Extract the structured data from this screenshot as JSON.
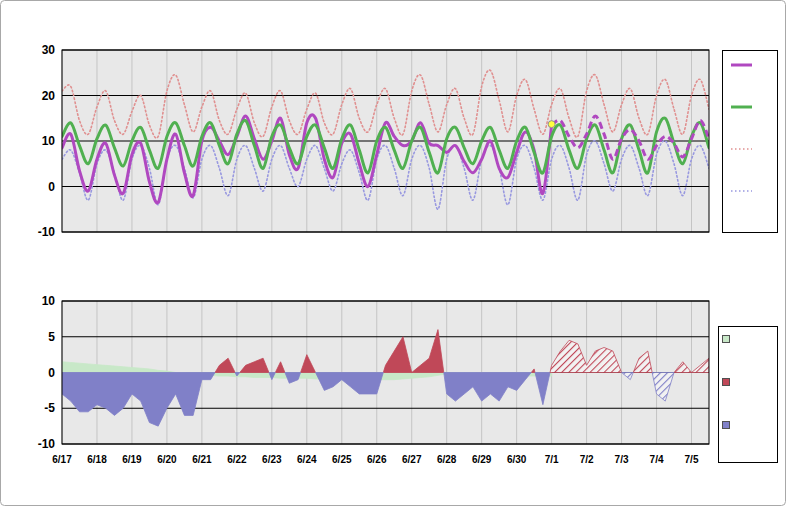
{
  "chart_data": [
    {
      "type": "line",
      "x": [
        0,
        0.25,
        0.5,
        0.75,
        1,
        1.25,
        1.5,
        1.75,
        2,
        2.25,
        2.5,
        2.75,
        3,
        3.25,
        3.5,
        3.75,
        4,
        4.25,
        4.5,
        4.75,
        5,
        5.25,
        5.5,
        5.75,
        6,
        6.25,
        6.5,
        6.75,
        7,
        7.25,
        7.5,
        7.75,
        8,
        8.25,
        8.5,
        8.75,
        9,
        9.25,
        9.5,
        9.75,
        10,
        10.25,
        10.5,
        10.75,
        11,
        11.25,
        11.5,
        11.75,
        12,
        12.25,
        12.5,
        12.75,
        13,
        13.25,
        13.5,
        13.75,
        14,
        14.25,
        14.5,
        14.75,
        15,
        15.25,
        15.5,
        15.75,
        16,
        16.25,
        16.5,
        16.75,
        17,
        17.25,
        17.5,
        17.75,
        18,
        18.25,
        18.5
      ],
      "xlim": [
        0,
        18.5
      ],
      "xticks": [
        0,
        1,
        2,
        3,
        4,
        5,
        6,
        7,
        8,
        9,
        10,
        11,
        12,
        13,
        14,
        15,
        16,
        17,
        18
      ],
      "ylim": [
        -10,
        30
      ],
      "yticks": [
        -10,
        0,
        10,
        20,
        30
      ],
      "grid": true,
      "tick_labels": "y",
      "series": [
        {
          "color": "#b048c0",
          "line_style": "solid",
          "values": [
            8.5,
            11.5,
            3.5,
            -1,
            6,
            9.5,
            2.5,
            -1.5,
            7,
            9.5,
            1,
            -3.5,
            6,
            11.5,
            3,
            -2,
            10,
            13,
            10,
            7,
            11,
            15.5,
            10.5,
            6,
            10,
            15,
            7,
            4,
            14,
            15,
            6,
            2,
            9.5,
            11.5,
            5,
            0,
            7,
            14,
            11,
            9,
            10,
            14,
            9.5,
            9,
            7.5,
            9,
            5.5,
            3,
            6,
            10,
            4,
            2,
            7.5,
            12,
            8,
            -1.5,
            13.5,
            null,
            null,
            null,
            null,
            null,
            null,
            null,
            null,
            null,
            null,
            null,
            null,
            null,
            null,
            null,
            null,
            null,
            null
          ]
        },
        {
          "color": "#50b050",
          "line_style": "solid",
          "values": [
            11,
            14,
            9,
            5,
            10.5,
            13.5,
            8.5,
            4.5,
            10,
            13,
            8,
            4,
            11,
            14,
            9,
            4.5,
            11,
            14,
            9,
            5,
            11.5,
            14.5,
            9,
            4,
            11,
            13.5,
            8.5,
            5,
            11,
            13.5,
            8.5,
            4,
            10.5,
            13.5,
            8,
            3,
            10,
            13,
            8,
            4,
            10,
            13,
            7.5,
            3,
            10.5,
            13,
            8.5,
            5,
            10,
            13,
            8,
            4,
            10,
            13,
            7.5,
            3,
            11,
            13.5,
            8,
            4,
            10.5,
            13.5,
            8,
            3,
            10.5,
            13.5,
            8,
            3,
            12,
            15,
            9.5,
            5,
            11,
            14,
            8.5
          ]
        },
        {
          "color": "#e09090",
          "line_style": "dotted",
          "values": [
            21,
            22,
            14.5,
            11.5,
            17.5,
            21,
            14.5,
            11.5,
            16.5,
            20,
            13.5,
            11,
            21,
            24.5,
            18,
            12,
            17.5,
            21,
            14.5,
            11.5,
            17,
            20.5,
            14,
            11,
            17.5,
            21,
            14.5,
            11.5,
            17,
            20.5,
            14,
            11.5,
            18,
            21.5,
            15,
            12,
            18,
            21.5,
            15,
            11.5,
            21,
            24.5,
            18,
            12,
            18,
            21.5,
            15,
            11.5,
            22,
            25.5,
            19,
            12,
            20,
            23.5,
            17,
            11.5,
            18,
            21.5,
            15,
            11,
            21,
            24.5,
            18,
            12,
            18,
            21.5,
            15,
            11.5,
            20,
            23.5,
            17,
            11.5,
            20,
            23.5,
            17
          ]
        },
        {
          "color": "#9898e0",
          "line_style": "dotted",
          "values": [
            6,
            8,
            3,
            -3,
            5,
            8,
            3,
            -3,
            6,
            9,
            4,
            -4,
            6,
            9,
            4,
            -2.5,
            6,
            9,
            4,
            -2,
            6,
            9,
            4,
            -1,
            6,
            9,
            4,
            0,
            6,
            9,
            4,
            -1,
            5,
            8,
            3,
            -3,
            6,
            9,
            4,
            -2,
            6,
            9,
            4,
            -5,
            6,
            9,
            4,
            -3,
            6,
            9,
            4,
            -4,
            6,
            9,
            4,
            -3,
            6,
            9,
            4,
            -3,
            7,
            10,
            5,
            -1,
            6,
            9,
            4,
            -2,
            7,
            10,
            5,
            -2,
            6,
            9,
            4
          ]
        },
        {
          "color": "#b048c0",
          "line_style": "dashed",
          "values": [
            null,
            null,
            null,
            null,
            null,
            null,
            null,
            null,
            null,
            null,
            null,
            null,
            null,
            null,
            null,
            null,
            null,
            null,
            null,
            null,
            null,
            null,
            null,
            null,
            null,
            null,
            null,
            null,
            null,
            null,
            null,
            null,
            null,
            null,
            null,
            null,
            null,
            null,
            null,
            null,
            null,
            null,
            null,
            null,
            null,
            null,
            null,
            null,
            null,
            null,
            null,
            null,
            null,
            null,
            null,
            null,
            13.5,
            14.5,
            11,
            8.5,
            11.5,
            15.5,
            11.5,
            6,
            10.5,
            12.5,
            10,
            6,
            9,
            11,
            9.5,
            6.5,
            10.5,
            14.5,
            10.5
          ]
        },
        {
          "type": "scatter",
          "marker": "circle",
          "color": "#ffff40",
          "values": [
            null,
            null,
            null,
            null,
            null,
            null,
            null,
            null,
            null,
            null,
            null,
            null,
            null,
            null,
            null,
            null,
            null,
            null,
            null,
            null,
            null,
            null,
            null,
            null,
            null,
            null,
            null,
            null,
            null,
            null,
            null,
            null,
            null,
            null,
            null,
            null,
            null,
            null,
            null,
            null,
            null,
            null,
            null,
            null,
            null,
            null,
            null,
            null,
            null,
            null,
            null,
            null,
            null,
            null,
            null,
            null,
            13.7,
            null,
            null,
            null,
            null,
            null,
            null,
            null,
            null,
            null,
            null,
            null,
            null,
            null,
            null,
            null,
            null,
            null,
            null
          ]
        }
      ]
    },
    {
      "type": "area",
      "x": [
        0,
        0.25,
        0.5,
        0.75,
        1,
        1.25,
        1.5,
        1.75,
        2,
        2.25,
        2.5,
        2.75,
        3,
        3.25,
        3.5,
        3.75,
        4,
        4.25,
        4.5,
        4.75,
        5,
        5.25,
        5.5,
        5.75,
        6,
        6.25,
        6.5,
        6.75,
        7,
        7.25,
        7.5,
        7.75,
        8,
        8.25,
        8.5,
        8.75,
        9,
        9.25,
        9.5,
        9.75,
        10,
        10.25,
        10.5,
        10.75,
        11,
        11.25,
        11.5,
        11.75,
        12,
        12.25,
        12.5,
        12.75,
        13,
        13.25,
        13.5,
        13.75,
        14,
        14.25,
        14.5,
        14.75,
        15,
        15.25,
        15.5,
        15.75,
        16,
        16.25,
        16.5,
        16.75,
        17,
        17.25,
        17.5,
        17.75,
        18,
        18.25,
        18.5
      ],
      "xlim": [
        0,
        18.5
      ],
      "xticks": [
        {
          "value": 0,
          "label": "6/17"
        },
        {
          "value": 1,
          "label": "6/18"
        },
        {
          "value": 2,
          "label": "6/19"
        },
        {
          "value": 3,
          "label": "6/20"
        },
        {
          "value": 4,
          "label": "6/21"
        },
        {
          "value": 5,
          "label": "6/22"
        },
        {
          "value": 6,
          "label": "6/23"
        },
        {
          "value": 7,
          "label": "6/24"
        },
        {
          "value": 8,
          "label": "6/25"
        },
        {
          "value": 9,
          "label": "6/26"
        },
        {
          "value": 10,
          "label": "6/27"
        },
        {
          "value": 11,
          "label": "6/28"
        },
        {
          "value": 12,
          "label": "6/29"
        },
        {
          "value": 13,
          "label": "6/30"
        },
        {
          "value": 14,
          "label": "7/1"
        },
        {
          "value": 15,
          "label": "7/2"
        },
        {
          "value": 16,
          "label": "7/3"
        },
        {
          "value": 17,
          "label": "7/4"
        },
        {
          "value": 18,
          "label": "7/5"
        }
      ],
      "ylim": [
        -10,
        10
      ],
      "yticks": [
        -10,
        -5,
        0,
        5,
        10
      ],
      "grid": true,
      "series": [
        {
          "color": "#c8e8c8",
          "values": [
            1.5,
            1.4,
            1.3,
            1.2,
            1.1,
            1,
            0.9,
            0.8,
            0.7,
            0.6,
            0.5,
            0.3,
            0.2,
            0,
            -0.1,
            -0.2,
            -0.3,
            -0.4,
            -0.5,
            -0.5,
            -0.6,
            -0.6,
            -0.7,
            -0.7,
            -0.7,
            -0.8,
            -0.8,
            -0.8,
            -0.8,
            -0.9,
            -0.9,
            -0.9,
            -1,
            -1,
            -1,
            -1,
            -1,
            -1,
            -1,
            -0.9,
            -0.8,
            -0.7,
            -0.6,
            -0.4,
            -0.2,
            0,
            0,
            0,
            -0.1,
            -0.2,
            -0.3,
            -0.4,
            -0.4,
            -0.5,
            -0.5,
            -0.5,
            -0.5,
            null,
            null,
            null,
            null,
            null,
            null,
            null,
            null,
            null,
            null,
            null,
            null,
            null,
            null,
            null,
            null,
            null,
            null
          ]
        },
        {
          "color": "#c04858",
          "values": [
            null,
            null,
            null,
            null,
            null,
            null,
            null,
            null,
            null,
            null,
            null,
            null,
            null,
            null,
            null,
            null,
            null,
            null,
            1,
            2,
            null,
            1,
            1.5,
            2,
            null,
            1.5,
            null,
            null,
            2.5,
            0,
            null,
            null,
            null,
            null,
            null,
            null,
            null,
            1,
            3,
            5,
            0,
            1,
            2,
            6,
            null,
            null,
            null,
            null,
            null,
            null,
            null,
            null,
            null,
            null,
            0.5,
            null,
            null,
            null,
            null,
            null,
            null,
            null,
            null,
            null,
            null,
            null,
            null,
            null,
            null,
            null,
            null,
            null,
            null,
            null,
            null
          ]
        },
        {
          "color": "#8080c8",
          "values": [
            -3,
            -4,
            -5.5,
            -5.5,
            -4.5,
            -5,
            -6,
            -5,
            -3,
            -4,
            -7,
            -7.5,
            -5,
            -3,
            -6,
            -6,
            -1,
            -1,
            null,
            null,
            -0.5,
            null,
            null,
            null,
            -1,
            null,
            -1.5,
            -1,
            null,
            0,
            -2.5,
            -2,
            -1,
            -2,
            -3,
            -3,
            -3,
            null,
            null,
            null,
            0,
            null,
            null,
            null,
            -3,
            -4,
            -3,
            -2,
            -4,
            -3,
            -4,
            -2,
            -2.5,
            -1,
            null,
            -4.5,
            null,
            null,
            null,
            null,
            null,
            null,
            null,
            null,
            null,
            null,
            null,
            null,
            null,
            null,
            null,
            null,
            null,
            null,
            null
          ]
        },
        {
          "color": "#c04858",
          "line_style": "hatched",
          "values": [
            null,
            null,
            null,
            null,
            null,
            null,
            null,
            null,
            null,
            null,
            null,
            null,
            null,
            null,
            null,
            null,
            null,
            null,
            null,
            null,
            null,
            null,
            null,
            null,
            null,
            null,
            null,
            null,
            null,
            null,
            null,
            null,
            null,
            null,
            null,
            null,
            null,
            null,
            null,
            null,
            null,
            null,
            null,
            null,
            null,
            null,
            null,
            null,
            null,
            null,
            null,
            null,
            null,
            null,
            null,
            null,
            1,
            3,
            4.5,
            4,
            1,
            3,
            3.5,
            3,
            0,
            null,
            2,
            3,
            null,
            null,
            0,
            1.5,
            0,
            1,
            2
          ]
        },
        {
          "color": "#8080c8",
          "line_style": "hatched",
          "values": [
            null,
            null,
            null,
            null,
            null,
            null,
            null,
            null,
            null,
            null,
            null,
            null,
            null,
            null,
            null,
            null,
            null,
            null,
            null,
            null,
            null,
            null,
            null,
            null,
            null,
            null,
            null,
            null,
            null,
            null,
            null,
            null,
            null,
            null,
            null,
            null,
            null,
            null,
            null,
            null,
            null,
            null,
            null,
            null,
            null,
            null,
            null,
            null,
            null,
            null,
            null,
            null,
            null,
            null,
            null,
            null,
            null,
            null,
            null,
            null,
            null,
            null,
            null,
            null,
            0,
            -1,
            null,
            null,
            -3,
            -4,
            0,
            null,
            0,
            null,
            null
          ]
        }
      ]
    }
  ]
}
